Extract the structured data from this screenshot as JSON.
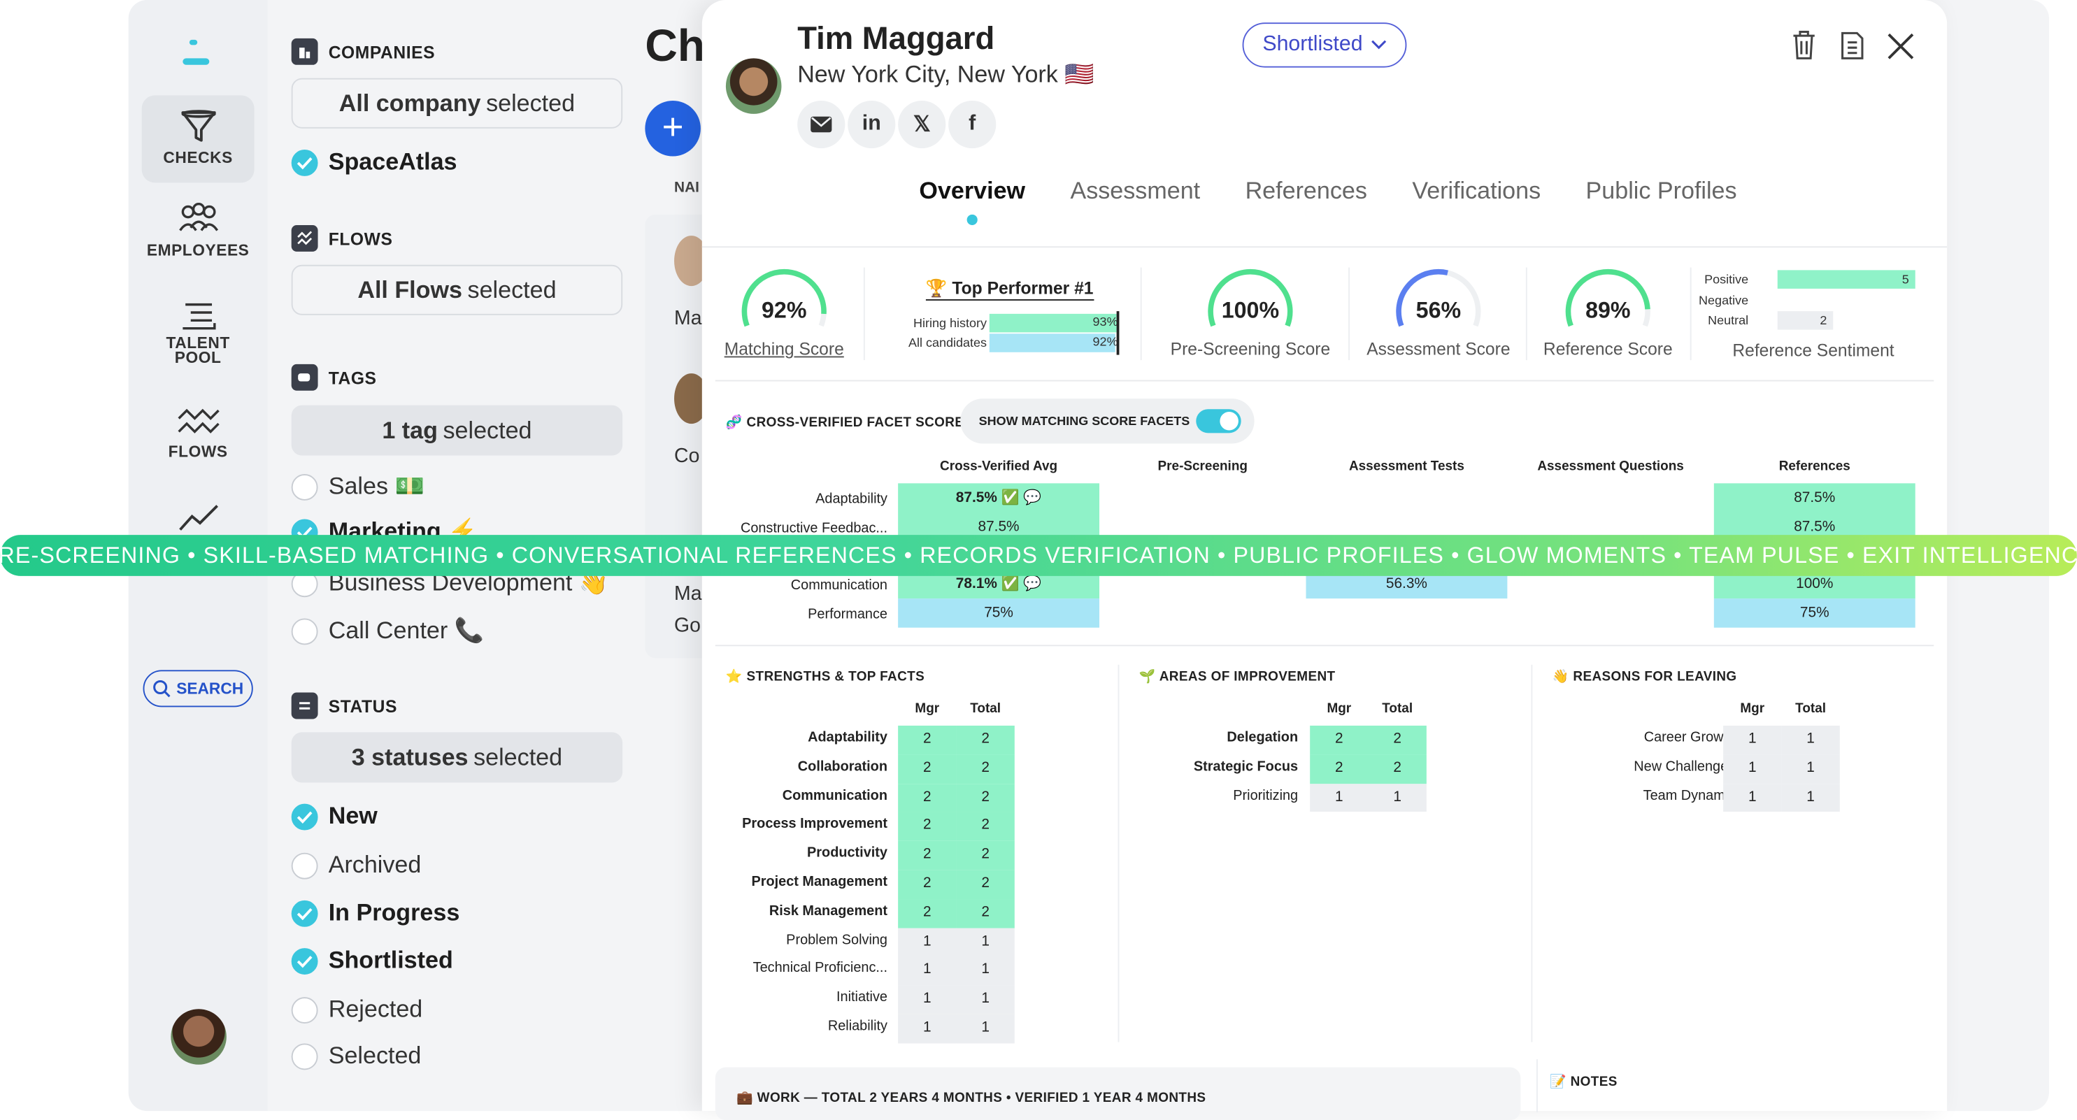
{
  "nav": {
    "items": [
      {
        "label": "CHECKS"
      },
      {
        "label": "EMPLOYEES"
      },
      {
        "label": "TALENT POOL"
      },
      {
        "label": "FLOWS"
      }
    ],
    "search_label": "SEARCH"
  },
  "filters": {
    "companies": {
      "title": "COMPANIES",
      "selected_bold": "All company",
      "selected_rest": "selected",
      "options": [
        {
          "label": "SpaceAtlas",
          "checked": true
        }
      ]
    },
    "flows": {
      "title": "FLOWS",
      "selected_bold": "All Flows",
      "selected_rest": "selected"
    },
    "tags": {
      "title": "TAGS",
      "selected_bold": "1 tag",
      "selected_rest": "selected",
      "options": [
        {
          "label": "Sales 💵",
          "checked": false
        },
        {
          "label": "Marketing ⚡",
          "checked": true
        },
        {
          "label": "Business Development 👋",
          "checked": false
        },
        {
          "label": "Call Center 📞",
          "checked": false
        }
      ]
    },
    "status": {
      "title": "STATUS",
      "selected_bold": "3 statuses",
      "selected_rest": "selected",
      "options": [
        {
          "label": "New",
          "checked": true
        },
        {
          "label": "Archived",
          "checked": false
        },
        {
          "label": "In Progress",
          "checked": true
        },
        {
          "label": "Shortlisted",
          "checked": true
        },
        {
          "label": "Rejected",
          "checked": false
        },
        {
          "label": "Selected",
          "checked": false
        }
      ]
    }
  },
  "list": {
    "title_partial": "Ch",
    "col_partial": "NAI",
    "row1_partial": "Ma",
    "row2_partial": "Co",
    "row3a": "Ma",
    "row3b": "Go"
  },
  "candidate": {
    "name": "Tim Maggard",
    "location": "New York City, New York 🇺🇸",
    "status": "Shortlisted",
    "social": [
      "email",
      "linkedin",
      "x",
      "facebook"
    ]
  },
  "tabs": [
    "Overview",
    "Assessment",
    "References",
    "Verifications",
    "Public Profiles"
  ],
  "active_tab": "Overview",
  "scores": {
    "matching": {
      "value": "92%",
      "label": "Matching Score",
      "fraction": 0.92
    },
    "top_performer": {
      "title": "Top Performer #1",
      "rows": [
        {
          "label": "Hiring history",
          "value": "93%"
        },
        {
          "label": "All candidates",
          "value": "92%"
        }
      ]
    },
    "pre_screening": {
      "value": "100%",
      "label": "Pre-Screening Score",
      "fraction": 1.0
    },
    "assessment": {
      "value": "56%",
      "label": "Assessment Score",
      "fraction": 0.56
    },
    "reference": {
      "value": "89%",
      "label": "Reference Score",
      "fraction": 0.89
    },
    "sentiment": {
      "label": "Reference Sentiment",
      "rows": [
        {
          "label": "Positive",
          "value": "5"
        },
        {
          "label": "Negative",
          "value": ""
        },
        {
          "label": "Neutral",
          "value": "2"
        }
      ]
    }
  },
  "facets": {
    "title": "CROSS-VERIFIED FACET SCORES",
    "toggle_label": "SHOW MATCHING SCORE FACETS",
    "columns": [
      "Cross-Verified Avg",
      "Pre-Screening",
      "Assessment Tests",
      "Assessment Questions",
      "References"
    ],
    "rows": [
      {
        "label": "Adaptability",
        "avg": "87.5%",
        "assessment": "",
        "references": "87.5%"
      },
      {
        "label": "Constructive Feedbac...",
        "avg": "87.5%",
        "assessment": "",
        "references": "87.5%"
      },
      {
        "label": "Communication",
        "avg": "78.1%",
        "assessment": "56.3%",
        "references": "100%"
      },
      {
        "label": "Performance",
        "avg": "75%",
        "assessment": "",
        "references": "75%"
      }
    ]
  },
  "banner": "PRE-SCREENING • SKILL-BASED MATCHING • CONVERSATIONAL REFERENCES • RECORDS VERIFICATION • PUBLIC PROFILES • GLOW MOMENTS • TEAM PULSE • EXIT INTELLIGENCE",
  "strengths": {
    "title": "STRENGTHS & TOP FACTS",
    "cols": [
      "Mgr",
      "Total"
    ],
    "rows": [
      {
        "label": "Adaptability",
        "mgr": "2",
        "total": "2"
      },
      {
        "label": "Collaboration",
        "mgr": "2",
        "total": "2"
      },
      {
        "label": "Communication",
        "mgr": "2",
        "total": "2"
      },
      {
        "label": "Process Improvement",
        "mgr": "2",
        "total": "2"
      },
      {
        "label": "Productivity",
        "mgr": "2",
        "total": "2"
      },
      {
        "label": "Project Management",
        "mgr": "2",
        "total": "2"
      },
      {
        "label": "Risk Management",
        "mgr": "2",
        "total": "2"
      },
      {
        "label": "Problem Solving",
        "mgr": "1",
        "total": "1"
      },
      {
        "label": "Technical Proficienc...",
        "mgr": "1",
        "total": "1"
      },
      {
        "label": "Initiative",
        "mgr": "1",
        "total": "1"
      },
      {
        "label": "Reliability",
        "mgr": "1",
        "total": "1"
      }
    ]
  },
  "improvement": {
    "title": "AREAS OF IMPROVEMENT",
    "cols": [
      "Mgr",
      "Total"
    ],
    "rows": [
      {
        "label": "Delegation",
        "mgr": "2",
        "total": "2"
      },
      {
        "label": "Strategic Focus",
        "mgr": "2",
        "total": "2"
      },
      {
        "label": "Prioritizing",
        "mgr": "1",
        "total": "1"
      }
    ]
  },
  "leaving": {
    "title": "REASONS FOR LEAVING",
    "cols": [
      "Mgr",
      "Total"
    ],
    "rows": [
      {
        "label": "Career Growth",
        "mgr": "1",
        "total": "1"
      },
      {
        "label": "New Challenges",
        "mgr": "1",
        "total": "1"
      },
      {
        "label": "Team Dynamic",
        "mgr": "1",
        "total": "1"
      }
    ]
  },
  "work": {
    "title": "WORK — TOTAL 2 YEARS 4 MONTHS • VERIFIED 1 YEAR 4 MONTHS"
  },
  "notes": {
    "title": "NOTES"
  },
  "colors": {
    "accent": "#39c6dd",
    "green": "#8ff2c8",
    "blue": "#a7e5f6",
    "primary": "#2452c9"
  }
}
